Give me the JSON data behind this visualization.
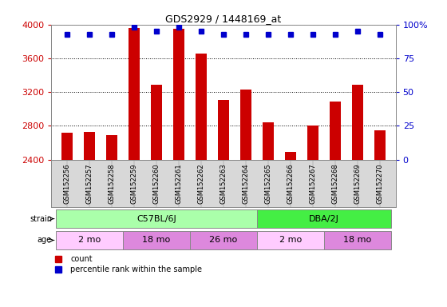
{
  "title": "GDS2929 / 1448169_at",
  "samples": [
    "GSM152256",
    "GSM152257",
    "GSM152258",
    "GSM152259",
    "GSM152260",
    "GSM152261",
    "GSM152262",
    "GSM152263",
    "GSM152264",
    "GSM152265",
    "GSM152266",
    "GSM152267",
    "GSM152268",
    "GSM152269",
    "GSM152270"
  ],
  "counts": [
    2720,
    2730,
    2690,
    3960,
    3290,
    3950,
    3660,
    3110,
    3230,
    2840,
    2490,
    2800,
    3090,
    3290,
    2750
  ],
  "percentile_ranks": [
    93,
    93,
    93,
    98,
    95,
    98,
    95,
    93,
    93,
    93,
    93,
    93,
    93,
    95,
    93
  ],
  "ylim_left": [
    2400,
    4000
  ],
  "ylim_right": [
    0,
    100
  ],
  "bar_color": "#cc0000",
  "dot_color": "#0000cc",
  "grid_color": "#000000",
  "strain_groups": [
    {
      "label": "C57BL/6J",
      "start": 0,
      "end": 8,
      "color": "#aaffaa"
    },
    {
      "label": "DBA/2J",
      "start": 9,
      "end": 14,
      "color": "#44ee44"
    }
  ],
  "age_groups": [
    {
      "label": "2 mo",
      "start": 0,
      "end": 2,
      "color": "#ffccff"
    },
    {
      "label": "18 mo",
      "start": 3,
      "end": 5,
      "color": "#dd88dd"
    },
    {
      "label": "26 mo",
      "start": 6,
      "end": 8,
      "color": "#dd88dd"
    },
    {
      "label": "2 mo",
      "start": 9,
      "end": 11,
      "color": "#ffccff"
    },
    {
      "label": "18 mo",
      "start": 12,
      "end": 14,
      "color": "#dd88dd"
    }
  ],
  "left_tick_color": "#cc0000",
  "right_tick_color": "#0000cc",
  "background_color": "#ffffff",
  "tick_label_bg": "#d8d8d8",
  "border_color": "#888888",
  "yticks_left": [
    2400,
    2800,
    3200,
    3600,
    4000
  ],
  "yticks_right": [
    0,
    25,
    50,
    75,
    100
  ],
  "ytick_right_labels": [
    "0",
    "25",
    "50",
    "75",
    "100%"
  ]
}
